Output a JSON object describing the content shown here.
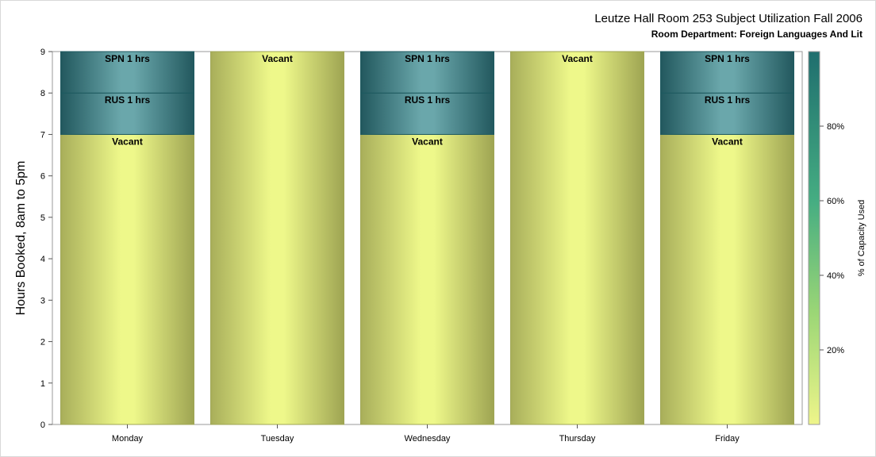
{
  "chart_data": {
    "type": "bar",
    "stacked": true,
    "title": "Leutze Hall Room 253 Subject Utilization Fall 2006",
    "subtitle": "Room Department:  Foreign Languages And Lit",
    "xlabel": "",
    "ylabel": "Hours Booked, 8am to 5pm",
    "ylim": [
      0,
      9
    ],
    "yticks": [
      0,
      1,
      2,
      3,
      4,
      5,
      6,
      7,
      8,
      9
    ],
    "categories": [
      "Monday",
      "Tuesday",
      "Wednesday",
      "Thursday",
      "Friday"
    ],
    "bars": [
      {
        "category": "Monday",
        "segments": [
          {
            "label": "Vacant",
            "hours": 7,
            "capacity_used": 0
          },
          {
            "label": "RUS 1 hrs",
            "hours": 1,
            "capacity_used": 0.9
          },
          {
            "label": "SPN 1 hrs",
            "hours": 1,
            "capacity_used": 0.9
          }
        ]
      },
      {
        "category": "Tuesday",
        "segments": [
          {
            "label": "Vacant",
            "hours": 9,
            "capacity_used": 0
          }
        ]
      },
      {
        "category": "Wednesday",
        "segments": [
          {
            "label": "Vacant",
            "hours": 7,
            "capacity_used": 0
          },
          {
            "label": "RUS 1 hrs",
            "hours": 1,
            "capacity_used": 0.9
          },
          {
            "label": "SPN 1 hrs",
            "hours": 1,
            "capacity_used": 0.9
          }
        ]
      },
      {
        "category": "Thursday",
        "segments": [
          {
            "label": "Vacant",
            "hours": 9,
            "capacity_used": 0
          }
        ]
      },
      {
        "category": "Friday",
        "segments": [
          {
            "label": "Vacant",
            "hours": 7,
            "capacity_used": 0
          },
          {
            "label": "RUS 1 hrs",
            "hours": 1,
            "capacity_used": 0.9
          },
          {
            "label": "SPN 1 hrs",
            "hours": 1,
            "capacity_used": 0.9
          }
        ]
      }
    ],
    "colorbar": {
      "label": "% of Capacity Used",
      "ticks": [
        "20%",
        "40%",
        "60%",
        "80%"
      ],
      "tick_values": [
        0.2,
        0.4,
        0.6,
        0.8
      ],
      "range": [
        0,
        1
      ],
      "colors": [
        "#ecf58c",
        "#82cb76",
        "#3aa085",
        "#1f6e6e"
      ]
    },
    "colors": {
      "vacant": "#eef88a",
      "vacant_edge": "#9fa655",
      "booked": "#5a969c",
      "booked_edge": "#1e5a60"
    },
    "grid": false,
    "legend": "colorbar-right"
  }
}
